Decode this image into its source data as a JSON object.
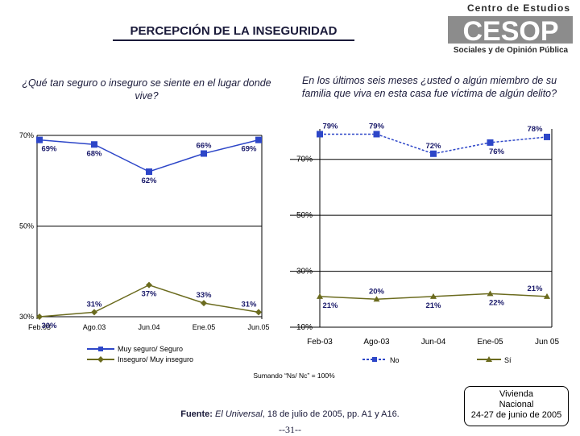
{
  "page": {
    "title": "PERCEPCIÓN DE LA INSEGURIDAD",
    "logo": {
      "line1": "Centro de Estudios",
      "acronym": "CESOP",
      "line2": "Sociales y de Opinión Pública"
    },
    "question_left": "¿Qué tan seguro o inseguro se siente  en el lugar donde vive?",
    "question_right": "En los últimos seis meses ¿usted o algún miembro de su familia que viva en esta casa fue víctima de algún delito?",
    "note": "Sumando “Ns/ Nc” = 100%",
    "source_label": "Fuente:",
    "source_italic": "El Universal",
    "source_rest": ", 18 de julio de 2005, pp. A1 y A16.",
    "page_number": "--31--",
    "sample_box": [
      "Vivienda",
      "Nacional",
      "24-27 de junio de 2005"
    ]
  },
  "colors": {
    "blue": "#2d46c8",
    "olive": "#6b6b1e",
    "text": "#1a1a6a",
    "grid": "#000000"
  },
  "chart_data": [
    {
      "type": "line",
      "title": "¿Qué tan seguro o inseguro se siente  en el lugar donde vive?",
      "categories": [
        "Feb.03",
        "Ago.03",
        "Jun.04",
        "Ene.05",
        "Jun.05"
      ],
      "ylim": [
        30,
        70
      ],
      "yticks": [
        30,
        50,
        70
      ],
      "ytick_labels": [
        "30%",
        "50%",
        "70%"
      ],
      "grid": true,
      "series": [
        {
          "name": "Muy seguro/ Seguro",
          "values": [
            69,
            68,
            62,
            66,
            69
          ],
          "labels": [
            "69%",
            "68%",
            "62%",
            "66%",
            "69%"
          ],
          "label_pos": [
            "below",
            "below",
            "below",
            "above",
            "below"
          ],
          "color": "#2d46c8",
          "marker": "square"
        },
        {
          "name": "Inseguro/ Muy inseguro",
          "values": [
            30,
            31,
            37,
            33,
            31
          ],
          "labels": [
            "30%",
            "31%",
            "37%",
            "33%",
            "31%"
          ],
          "label_pos": [
            "below",
            "above",
            "below",
            "above",
            "above"
          ],
          "color": "#6b6b1e",
          "marker": "diamond"
        }
      ],
      "legend": "bottom"
    },
    {
      "type": "line",
      "title": "En los últimos seis meses ¿usted o algún miembro de su familia que viva en esta casa fue víctima de algún delito?",
      "categories": [
        "Feb-03",
        "Ago-03",
        "Jun-04",
        "Ene-05",
        "Jun 05"
      ],
      "ylim": [
        10,
        80
      ],
      "yticks": [
        10,
        30,
        50,
        70
      ],
      "ytick_labels": [
        "10%",
        "30%",
        "50%",
        "70%"
      ],
      "grid": true,
      "series": [
        {
          "name": "No",
          "values": [
            79,
            79,
            72,
            76,
            78
          ],
          "labels": [
            "79%",
            "79%",
            "72%",
            "76%",
            "78%"
          ],
          "label_pos": [
            "above",
            "above",
            "above",
            "below",
            "above"
          ],
          "color": "#2d46c8",
          "marker": "square"
        },
        {
          "name": "Sí",
          "values": [
            21,
            20,
            21,
            22,
            21
          ],
          "labels": [
            "21%",
            "20%",
            "21%",
            "22%",
            "21%"
          ],
          "label_pos": [
            "below",
            "above",
            "below",
            "below",
            "above"
          ],
          "color": "#6b6b1e",
          "marker": "triangle"
        }
      ],
      "legend": "bottom"
    }
  ]
}
